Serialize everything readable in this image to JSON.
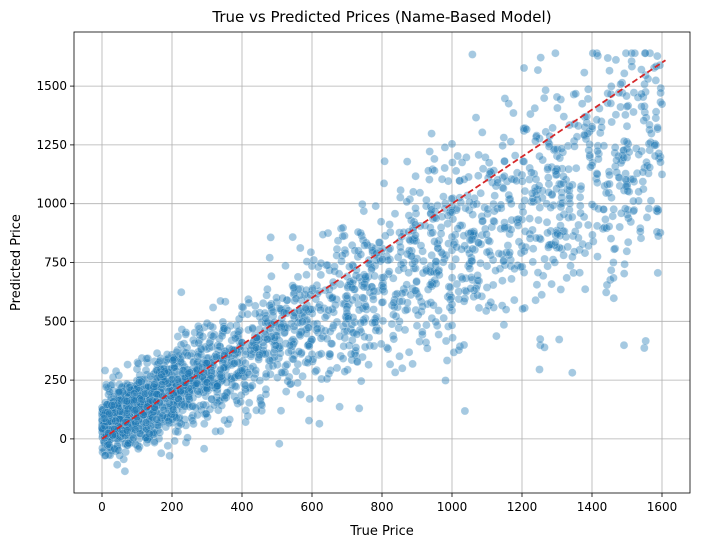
{
  "chart_data": {
    "type": "scatter",
    "title": "True vs Predicted Prices (Name-Based Model)",
    "xlabel": "True Price",
    "ylabel": "Predicted Price",
    "xlim": [
      -80,
      1680
    ],
    "ylim": [
      -230,
      1730
    ],
    "x_ticks": [
      0,
      200,
      400,
      600,
      800,
      1000,
      1200,
      1400,
      1600
    ],
    "y_ticks": [
      0,
      250,
      500,
      750,
      1000,
      1250,
      1500
    ],
    "grid": true,
    "series": [
      {
        "kind": "scatter",
        "color": "#1f77b4",
        "opacity": 0.4,
        "approximate_trend": {
          "x_range": [
            0,
            1600
          ],
          "y_at_0": 50,
          "y_at_1600": 1260,
          "spread_sd": 200
        }
      },
      {
        "kind": "reference-line",
        "style": "dashed",
        "color": "#d62728",
        "x": [
          0,
          1610
        ],
        "y": [
          0,
          1610
        ]
      }
    ]
  }
}
